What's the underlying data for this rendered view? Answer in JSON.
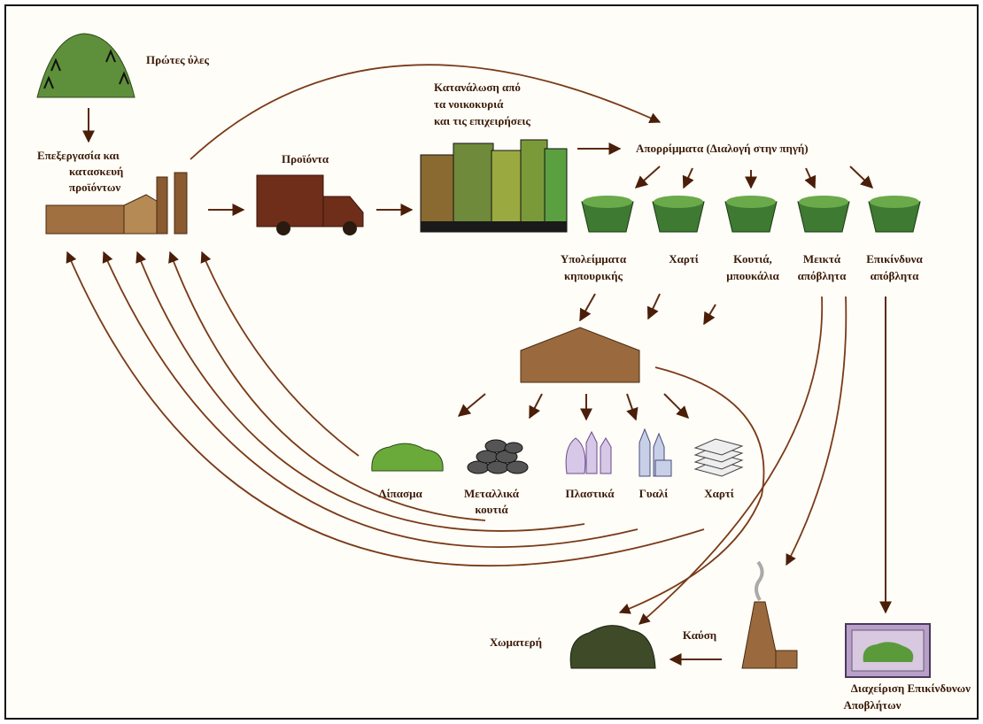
{
  "raw_materials": "Πρώτες ύλες",
  "manufacturing": [
    "Επεξεργασία και",
    "κατασκευή",
    "προϊόντων"
  ],
  "products": "Προϊόντα",
  "consumption": [
    "Κατανάλωση από",
    "τα νοικοκυριά",
    "και τις επιχειρήσεις"
  ],
  "waste_sorting": "Απορρίμματα (Διαλογή στην πηγή)",
  "bins": [
    [
      "Υπολείμματα",
      "κηπουρικής"
    ],
    [
      "Χαρτί"
    ],
    [
      "Κουτιά,",
      "μπουκάλια"
    ],
    [
      "Μεικτά",
      "απόβλητα"
    ],
    [
      "Επικίνδυνα",
      "απόβλητα"
    ]
  ],
  "recycled": [
    [
      "Λίπασμα"
    ],
    [
      "Μεταλλικά",
      "κουτιά"
    ],
    [
      "Πλαστικά"
    ],
    [
      "Γυαλί"
    ],
    [
      "Χαρτί"
    ]
  ],
  "landfill": "Χωματερή",
  "incineration": "Καύση",
  "hazardous_management": [
    "Διαχείριση Επικίνδυνων",
    "Αποβλήτων"
  ]
}
